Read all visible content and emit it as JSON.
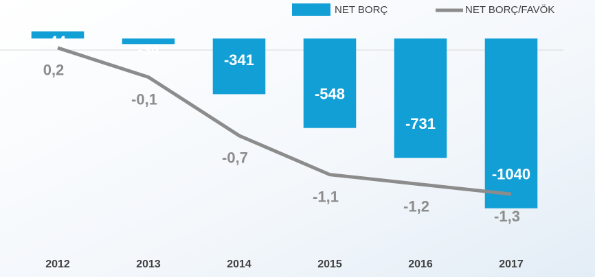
{
  "chart_data": {
    "type": "bar-line",
    "categories": [
      "2012",
      "2013",
      "2014",
      "2015",
      "2016",
      "2017"
    ],
    "series": [
      {
        "name": "NET BORÇ",
        "color": "#119fd6",
        "values": [
          44,
          -34,
          -341,
          -548,
          -731,
          -1040
        ]
      },
      {
        "name": "NET BORÇ/FAVÖK",
        "color": "#8c8c8c",
        "axis": "y2",
        "values": [
          0.2,
          -0.1,
          -0.7,
          -1.1,
          -1.2,
          -1.3
        ],
        "value_labels": [
          "0,2",
          "-0,1",
          "-0,7",
          "-1,1",
          "-1,2",
          "-1,3"
        ]
      }
    ],
    "ylim": [
      -1150,
      110
    ],
    "y2lim": [
      -1.63,
      0.48
    ],
    "legend": "top-right"
  }
}
